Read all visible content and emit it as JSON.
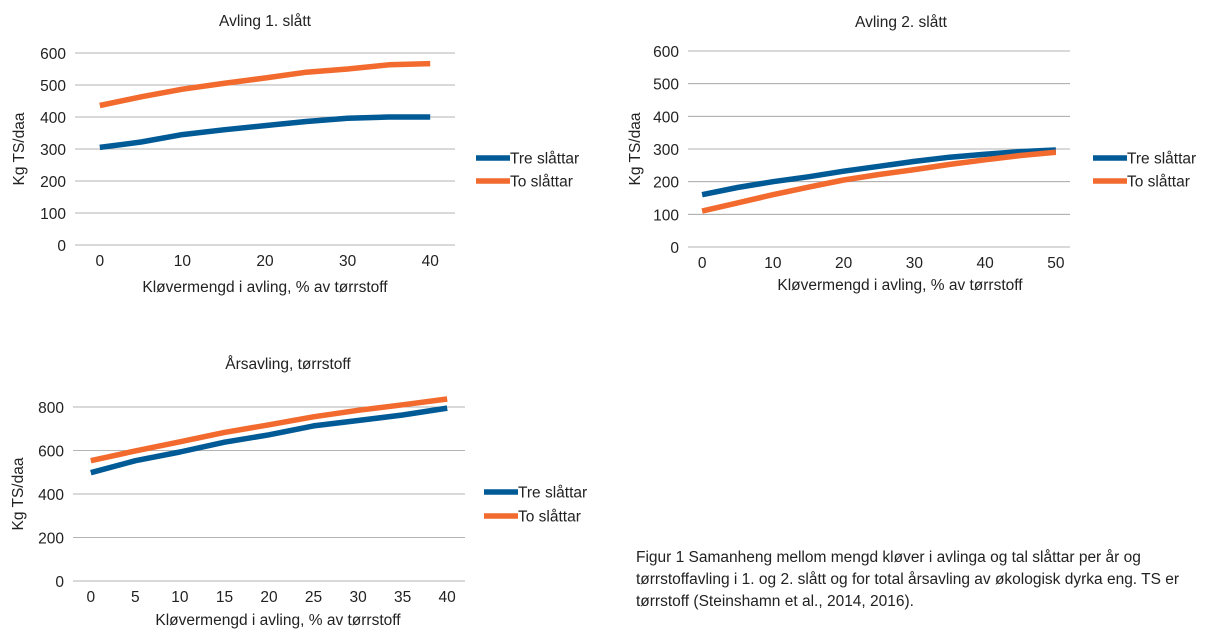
{
  "chart_data": [
    {
      "type": "line",
      "title": "Avling 1. slått",
      "xlabel": "Kløvermengd i avling, % av tørrstoff",
      "ylabel": "Kg TS/daa",
      "xlim": [
        -3,
        43
      ],
      "ylim": [
        0,
        600
      ],
      "xticks": [
        0,
        10,
        20,
        30,
        40
      ],
      "yticks": [
        0,
        100,
        200,
        300,
        400,
        500,
        600
      ],
      "grid": true,
      "legend_position": "right",
      "series": [
        {
          "name": "Tre slåttar",
          "color": "#005a96",
          "points": [
            [
              0,
              305
            ],
            [
              5,
              322
            ],
            [
              10,
              345
            ],
            [
              15,
              360
            ],
            [
              20,
              373
            ],
            [
              25,
              386
            ],
            [
              30,
              396
            ],
            [
              35,
              400
            ],
            [
              40,
              400
            ]
          ]
        },
        {
          "name": "To slåttar",
          "color": "#f26a2d",
          "points": [
            [
              0,
              436
            ],
            [
              5,
              463
            ],
            [
              10,
              487
            ],
            [
              15,
              505
            ],
            [
              20,
              522
            ],
            [
              25,
              540
            ],
            [
              30,
              550
            ],
            [
              35,
              563
            ],
            [
              40,
              567
            ]
          ]
        }
      ]
    },
    {
      "type": "line",
      "title": "Avling 2. slått",
      "xlabel": "Kløvermengd i avling, % av tørrstoff",
      "ylabel": "Kg TS/daa",
      "xlim": [
        -2,
        52
      ],
      "ylim": [
        0,
        600
      ],
      "xticks": [
        0,
        10,
        20,
        30,
        40,
        50
      ],
      "yticks": [
        0,
        100,
        200,
        300,
        400,
        500,
        600
      ],
      "grid": true,
      "legend_position": "right",
      "series": [
        {
          "name": "Tre slåttar",
          "color": "#005a96",
          "points": [
            [
              0,
              160
            ],
            [
              5,
              182
            ],
            [
              10,
              200
            ],
            [
              15,
              215
            ],
            [
              20,
              232
            ],
            [
              25,
              247
            ],
            [
              30,
              262
            ],
            [
              35,
              275
            ],
            [
              40,
              284
            ],
            [
              45,
              292
            ],
            [
              50,
              297
            ]
          ]
        },
        {
          "name": "To slåttar",
          "color": "#f26a2d",
          "points": [
            [
              0,
              110
            ],
            [
              5,
              135
            ],
            [
              10,
              160
            ],
            [
              15,
              183
            ],
            [
              20,
              205
            ],
            [
              25,
              222
            ],
            [
              30,
              237
            ],
            [
              35,
              253
            ],
            [
              40,
              267
            ],
            [
              45,
              280
            ],
            [
              50,
              290
            ]
          ]
        }
      ]
    },
    {
      "type": "line",
      "title": "Årsavling, tørrstoff",
      "xlabel": "Kløvermengd i avling, % av tørrstoff",
      "ylabel": "Kg TS/daa",
      "xlim": [
        -2,
        42
      ],
      "ylim": [
        0,
        800
      ],
      "xticks": [
        0,
        5,
        10,
        15,
        20,
        25,
        30,
        35,
        40
      ],
      "yticks": [
        0,
        200,
        400,
        600,
        800
      ],
      "grid": true,
      "legend_position": "right",
      "series": [
        {
          "name": "Tre slåttar",
          "color": "#005a96",
          "points": [
            [
              0,
              498
            ],
            [
              5,
              553
            ],
            [
              10,
              593
            ],
            [
              15,
              638
            ],
            [
              20,
              672
            ],
            [
              25,
              713
            ],
            [
              30,
              738
            ],
            [
              35,
              763
            ],
            [
              40,
              795
            ]
          ]
        },
        {
          "name": "To slåttar",
          "color": "#f26a2d",
          "points": [
            [
              0,
              553
            ],
            [
              5,
              598
            ],
            [
              10,
              640
            ],
            [
              15,
              683
            ],
            [
              20,
              718
            ],
            [
              25,
              755
            ],
            [
              30,
              785
            ],
            [
              35,
              810
            ],
            [
              40,
              837
            ]
          ]
        }
      ]
    }
  ],
  "caption": "Figur 1 Samanheng mellom mengd kløver i avlinga og tal slåttar per år og tørrstoffavling i 1. og 2. slått og for total årsavling av økologisk dyrka eng. TS er tørrstoff (Steinshamn et al., 2014, 2016)."
}
